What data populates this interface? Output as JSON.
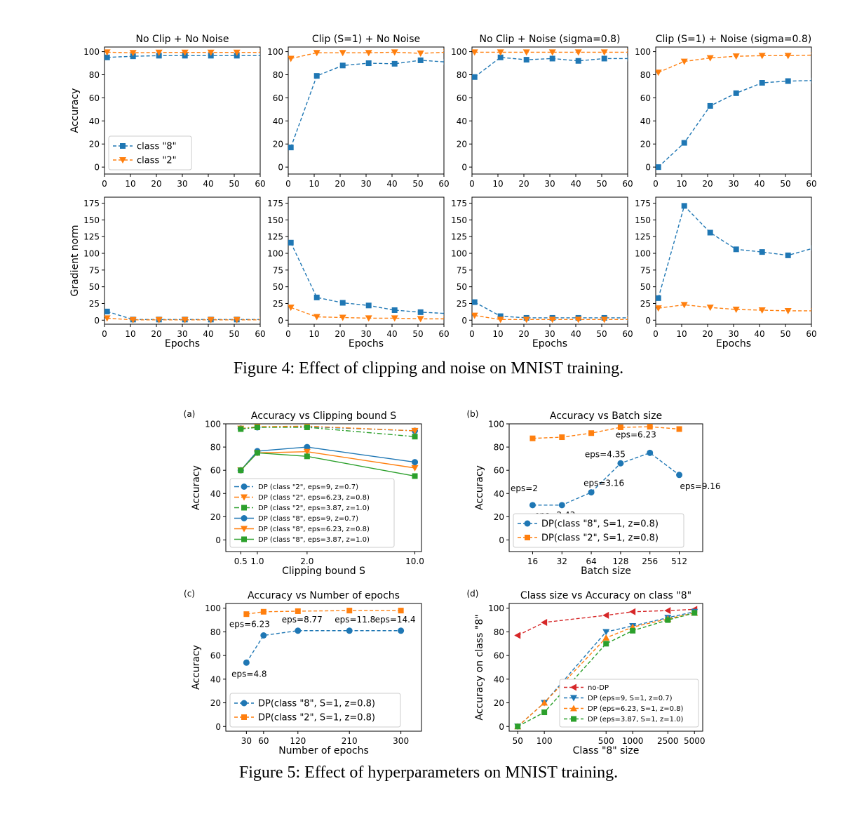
{
  "captions": {
    "fig4": "Figure 4: Effect of clipping and noise on MNIST training.",
    "fig5": "Figure 5: Effect of hyperparameters on MNIST training."
  },
  "colors": {
    "blue": "#1f77b4",
    "orange": "#ff7f0e",
    "green": "#2ca02c",
    "red": "#d62728"
  },
  "chart_data": [
    {
      "type": "line",
      "panel": "fig4-acc-1",
      "title": "No Clip + No Noise",
      "xlabel": "",
      "ylabel": "Accuracy",
      "xlim": [
        0,
        60
      ],
      "ylim": [
        -6,
        104
      ],
      "xticks": [
        0,
        10,
        20,
        30,
        40,
        50,
        60
      ],
      "yticks": [
        0,
        20,
        40,
        60,
        80,
        100
      ],
      "legend": "lower-left",
      "series": [
        {
          "name": "class \"8\"",
          "color": "blue",
          "marker": "square",
          "dash": "dashed",
          "x": [
            1,
            11,
            21,
            31,
            41,
            51,
            61
          ],
          "y": [
            95,
            96,
            96.5,
            96.5,
            96.5,
            96.5,
            96.5
          ]
        },
        {
          "name": "class \"2\"",
          "color": "orange",
          "marker": "tri_down",
          "dash": "dashed",
          "x": [
            1,
            11,
            21,
            31,
            41,
            51,
            61
          ],
          "y": [
            99.5,
            99,
            99.3,
            99.3,
            99.3,
            99.3,
            99.3
          ]
        }
      ]
    },
    {
      "type": "line",
      "panel": "fig4-acc-2",
      "title": "Clip (S=1) + No Noise",
      "xlabel": "",
      "ylabel": "",
      "xlim": [
        0,
        60
      ],
      "ylim": [
        -6,
        104
      ],
      "xticks": [
        0,
        10,
        20,
        30,
        40,
        50,
        60
      ],
      "yticks": [
        0,
        20,
        40,
        60,
        80,
        100
      ],
      "series": [
        {
          "color": "blue",
          "marker": "square",
          "dash": "dashed",
          "x": [
            1,
            11,
            21,
            31,
            41,
            51,
            61
          ],
          "y": [
            17,
            79,
            88,
            90,
            89.5,
            92.5,
            91
          ]
        },
        {
          "color": "orange",
          "marker": "tri_down",
          "dash": "dashed",
          "x": [
            1,
            11,
            21,
            31,
            41,
            51,
            61
          ],
          "y": [
            94,
            99,
            99,
            99,
            99.5,
            98.5,
            99.5
          ]
        }
      ]
    },
    {
      "type": "line",
      "panel": "fig4-acc-3",
      "title": "No Clip + Noise (sigma=0.8)",
      "xlabel": "",
      "ylabel": "",
      "xlim": [
        0,
        60
      ],
      "ylim": [
        -6,
        104
      ],
      "xticks": [
        0,
        10,
        20,
        30,
        40,
        50,
        60
      ],
      "yticks": [
        0,
        20,
        40,
        60,
        80,
        100
      ],
      "series": [
        {
          "color": "blue",
          "marker": "square",
          "dash": "dashed",
          "x": [
            1,
            11,
            21,
            31,
            41,
            51,
            61
          ],
          "y": [
            78,
            95,
            93,
            94,
            92,
            94,
            94
          ]
        },
        {
          "color": "orange",
          "marker": "tri_down",
          "dash": "dashed",
          "x": [
            1,
            11,
            21,
            31,
            41,
            51,
            61
          ],
          "y": [
            99.5,
            99.5,
            99.5,
            99.5,
            99.5,
            99.5,
            99.5
          ]
        }
      ]
    },
    {
      "type": "line",
      "panel": "fig4-acc-4",
      "title": "Clip (S=1) + Noise (sigma=0.8)",
      "xlabel": "",
      "ylabel": "",
      "xlim": [
        0,
        60
      ],
      "ylim": [
        -6,
        104
      ],
      "xticks": [
        0,
        10,
        20,
        30,
        40,
        50,
        60
      ],
      "yticks": [
        0,
        20,
        40,
        60,
        80,
        100
      ],
      "series": [
        {
          "color": "blue",
          "marker": "square",
          "dash": "dashed",
          "x": [
            1,
            11,
            21,
            31,
            41,
            51,
            61
          ],
          "y": [
            0,
            21,
            53,
            64,
            73,
            74.5,
            75
          ]
        },
        {
          "color": "orange",
          "marker": "tri_down",
          "dash": "dashed",
          "x": [
            1,
            11,
            21,
            31,
            41,
            51,
            61
          ],
          "y": [
            82,
            91.5,
            94.5,
            96,
            96.5,
            96.5,
            97
          ]
        }
      ]
    },
    {
      "type": "line",
      "panel": "fig4-grad-1",
      "title": "",
      "xlabel": "Epochs",
      "ylabel": "Gradient norm",
      "xlim": [
        0,
        60
      ],
      "ylim": [
        -6,
        184
      ],
      "xticks": [
        0,
        10,
        20,
        30,
        40,
        50,
        60
      ],
      "yticks": [
        0,
        25,
        50,
        75,
        100,
        125,
        150,
        175
      ],
      "series": [
        {
          "color": "blue",
          "marker": "square",
          "dash": "dashed",
          "x": [
            1,
            11,
            21,
            31,
            41,
            51,
            61
          ],
          "y": [
            13,
            1,
            1,
            1,
            1,
            1,
            1
          ]
        },
        {
          "color": "orange",
          "marker": "tri_down",
          "dash": "dashed",
          "x": [
            1,
            11,
            21,
            31,
            41,
            51,
            61
          ],
          "y": [
            3,
            0.5,
            0.5,
            0.5,
            0.5,
            0.5,
            0.5
          ]
        }
      ]
    },
    {
      "type": "line",
      "panel": "fig4-grad-2",
      "title": "",
      "xlabel": "Epochs",
      "ylabel": "",
      "xlim": [
        0,
        60
      ],
      "ylim": [
        -6,
        184
      ],
      "xticks": [
        0,
        10,
        20,
        30,
        40,
        50,
        60
      ],
      "yticks": [
        0,
        25,
        50,
        75,
        100,
        125,
        150,
        175
      ],
      "series": [
        {
          "color": "blue",
          "marker": "square",
          "dash": "dashed",
          "x": [
            1,
            11,
            21,
            31,
            41,
            51,
            61
          ],
          "y": [
            116,
            34,
            26,
            22,
            15,
            12,
            10
          ]
        },
        {
          "color": "orange",
          "marker": "tri_down",
          "dash": "dashed",
          "x": [
            1,
            11,
            21,
            31,
            41,
            51,
            61
          ],
          "y": [
            19,
            5,
            4,
            3,
            3,
            2,
            2
          ]
        }
      ]
    },
    {
      "type": "line",
      "panel": "fig4-grad-3",
      "title": "",
      "xlabel": "Epochs",
      "ylabel": "",
      "xlim": [
        0,
        60
      ],
      "ylim": [
        -6,
        184
      ],
      "xticks": [
        0,
        10,
        20,
        30,
        40,
        50,
        60
      ],
      "yticks": [
        0,
        25,
        50,
        75,
        100,
        125,
        150,
        175
      ],
      "series": [
        {
          "color": "blue",
          "marker": "square",
          "dash": "dashed",
          "x": [
            1,
            11,
            21,
            31,
            41,
            51,
            61
          ],
          "y": [
            27,
            6,
            3.5,
            3.5,
            3.5,
            3.5,
            3.5
          ]
        },
        {
          "color": "orange",
          "marker": "tri_down",
          "dash": "dashed",
          "x": [
            1,
            11,
            21,
            31,
            41,
            51,
            61
          ],
          "y": [
            7,
            1,
            1,
            1,
            1,
            1,
            1
          ]
        }
      ]
    },
    {
      "type": "line",
      "panel": "fig4-grad-4",
      "title": "",
      "xlabel": "Epochs",
      "ylabel": "",
      "xlim": [
        0,
        60
      ],
      "ylim": [
        -6,
        184
      ],
      "xticks": [
        0,
        10,
        20,
        30,
        40,
        50,
        60
      ],
      "yticks": [
        0,
        25,
        50,
        75,
        100,
        125,
        150,
        175
      ],
      "series": [
        {
          "color": "blue",
          "marker": "square",
          "dash": "dashed",
          "x": [
            1,
            11,
            21,
            31,
            41,
            51,
            61
          ],
          "y": [
            33,
            171,
            131,
            106,
            102,
            97,
            108
          ]
        },
        {
          "color": "orange",
          "marker": "tri_down",
          "dash": "dashed",
          "x": [
            1,
            11,
            21,
            31,
            41,
            51,
            61
          ],
          "y": [
            18,
            23,
            19,
            16,
            15,
            14,
            14
          ]
        }
      ]
    },
    {
      "type": "line",
      "panel": "fig5-a",
      "panel_label": "(a)",
      "title": "Accuracy vs Clipping bound S",
      "xlabel": "Clipping bound S",
      "ylabel": "Accuracy",
      "xlim": [
        -0.4,
        11.4
      ],
      "ylim": [
        -10,
        100
      ],
      "xticks": [
        0.5,
        1.0,
        2.0,
        10.0
      ],
      "xtick_labels": [
        "0.5",
        "1.0",
        "2.0",
        "10.0"
      ],
      "x_positions": [
        0.5,
        1.5,
        4.5,
        11
      ],
      "yticks": [
        0,
        20,
        40,
        60,
        80,
        100
      ],
      "legend": "lower-left",
      "series": [
        {
          "name": "DP (class \"2\", eps=9, z=0.7)",
          "color": "blue",
          "marker": "circle",
          "dash": "dashdot",
          "x": [
            0.5,
            1.5,
            4.5,
            11
          ],
          "y": [
            96,
            97,
            97.5,
            94
          ]
        },
        {
          "name": "DP (class \"2\", eps=6.23, z=0.8)",
          "color": "orange",
          "marker": "tri_down",
          "dash": "dashdot",
          "x": [
            0.5,
            1.5,
            4.5,
            11
          ],
          "y": [
            96,
            97.5,
            98,
            94
          ]
        },
        {
          "name": "DP (class \"2\", eps=3.87, z=1.0)",
          "color": "green",
          "marker": "square",
          "dash": "dashdot",
          "x": [
            0.5,
            1.5,
            4.5,
            11
          ],
          "y": [
            95.5,
            97,
            97,
            89
          ]
        },
        {
          "name": "DP (class \"8\", eps=9, z=0.7)",
          "color": "blue",
          "marker": "circle",
          "dash": "solid",
          "x": [
            0.5,
            1.5,
            4.5,
            11
          ],
          "y": [
            60,
            76.5,
            80,
            67
          ]
        },
        {
          "name": "DP (class \"8\", eps=6.23, z=0.8)",
          "color": "orange",
          "marker": "tri_down",
          "dash": "solid",
          "x": [
            0.5,
            1.5,
            4.5,
            11
          ],
          "y": [
            60,
            75,
            76,
            62
          ]
        },
        {
          "name": "DP (class \"8\", eps=3.87, z=1.0)",
          "color": "green",
          "marker": "square",
          "dash": "solid",
          "x": [
            0.5,
            1.5,
            4.5,
            11
          ],
          "y": [
            60,
            75,
            72,
            55
          ]
        }
      ]
    },
    {
      "type": "line",
      "panel": "fig5-b",
      "panel_label": "(b)",
      "title": "Accuracy vs Batch size",
      "xlabel": "Batch size",
      "ylabel": "Accuracy",
      "xlim": [
        -0.8,
        5.8
      ],
      "ylim": [
        -10,
        100
      ],
      "xticks": [
        0,
        1,
        2,
        3,
        4,
        5
      ],
      "xtick_labels": [
        "16",
        "32",
        "64",
        "128",
        "256",
        "512"
      ],
      "yticks": [
        0,
        20,
        40,
        60,
        80,
        100
      ],
      "legend": "lower-left",
      "series": [
        {
          "name": "DP(class \"8\", S=1, z=0.8)",
          "color": "blue",
          "marker": "circle",
          "dash": "dashed",
          "x": [
            0,
            1,
            2,
            3,
            4,
            5
          ],
          "y": [
            30,
            30,
            41,
            66,
            75,
            56
          ]
        },
        {
          "name": "DP(class \"2\", S=1, z=0.8)",
          "color": "orange",
          "marker": "square",
          "dash": "dashed",
          "x": [
            0,
            1,
            2,
            3,
            4,
            5
          ],
          "y": [
            87.5,
            88.5,
            92,
            97,
            97.5,
            95.5
          ]
        }
      ],
      "annotations": [
        "eps=2",
        "eps=2.43",
        "eps=3.16",
        "eps=4.35",
        "eps=6.23",
        "eps=9.16"
      ]
    },
    {
      "type": "line",
      "panel": "fig5-c",
      "panel_label": "(c)",
      "title": "Accuracy vs Number of epochs",
      "xlabel": "Number of epochs",
      "ylabel": "Accuracy",
      "xlim": [
        -6,
        336
      ],
      "ylim": [
        -4,
        104
      ],
      "xticks": [
        30,
        60,
        120,
        210,
        300
      ],
      "yticks": [
        0,
        20,
        40,
        60,
        80,
        100
      ],
      "legend": "lower-left",
      "series": [
        {
          "name": "DP(class \"8\", S=1, z=0.8)",
          "color": "blue",
          "marker": "circle",
          "dash": "dashed",
          "x": [
            30,
            60,
            120,
            210,
            300
          ],
          "y": [
            54,
            77,
            81,
            81,
            81
          ]
        },
        {
          "name": "DP(class \"2\", S=1, z=0.8)",
          "color": "orange",
          "marker": "square",
          "dash": "dashed",
          "x": [
            30,
            60,
            120,
            210,
            300
          ],
          "y": [
            95,
            97,
            97.5,
            98,
            98
          ]
        }
      ],
      "annotations": [
        "eps=4.8",
        "eps=6.23",
        "eps=8.77",
        "eps=11.8",
        "eps=14.4"
      ]
    },
    {
      "type": "line",
      "panel": "fig5-d",
      "panel_label": "(d)",
      "title": "Class size vs Accuracy on class \"8\"",
      "xlabel": "Class \"8\" size",
      "ylabel": "Accuracy on class \"8\"",
      "xscale": "log",
      "xlim": [
        40,
        6200
      ],
      "ylim": [
        -4,
        104
      ],
      "xticks": [
        50,
        100,
        500,
        1000,
        2500,
        5000
      ],
      "yticks": [
        0,
        20,
        40,
        60,
        80,
        100
      ],
      "legend": "lower-right",
      "series": [
        {
          "name": "no-DP",
          "color": "red",
          "marker": "tri_left",
          "dash": "dashed",
          "x": [
            50,
            100,
            500,
            1000,
            2500,
            5000
          ],
          "y": [
            77,
            88,
            94,
            97,
            98,
            99
          ]
        },
        {
          "name": "DP (eps=9, S=1, z=0.7)",
          "color": "blue",
          "marker": "tri_down",
          "dash": "dashed",
          "x": [
            50,
            100,
            500,
            1000,
            2500,
            5000
          ],
          "y": [
            0,
            20,
            80,
            85,
            92,
            97
          ]
        },
        {
          "name": "DP (eps=6.23, S=1, z=0.8)",
          "color": "orange",
          "marker": "tri_up",
          "dash": "dashed",
          "x": [
            50,
            100,
            500,
            1000,
            2500,
            5000
          ],
          "y": [
            0,
            20,
            75,
            84,
            91,
            96
          ]
        },
        {
          "name": "DP (eps=3.87, S=1, z=1.0)",
          "color": "green",
          "marker": "square",
          "dash": "dashed",
          "x": [
            50,
            100,
            500,
            1000,
            2500,
            5000
          ],
          "y": [
            0,
            12,
            70,
            81,
            90,
            96
          ]
        }
      ]
    }
  ]
}
